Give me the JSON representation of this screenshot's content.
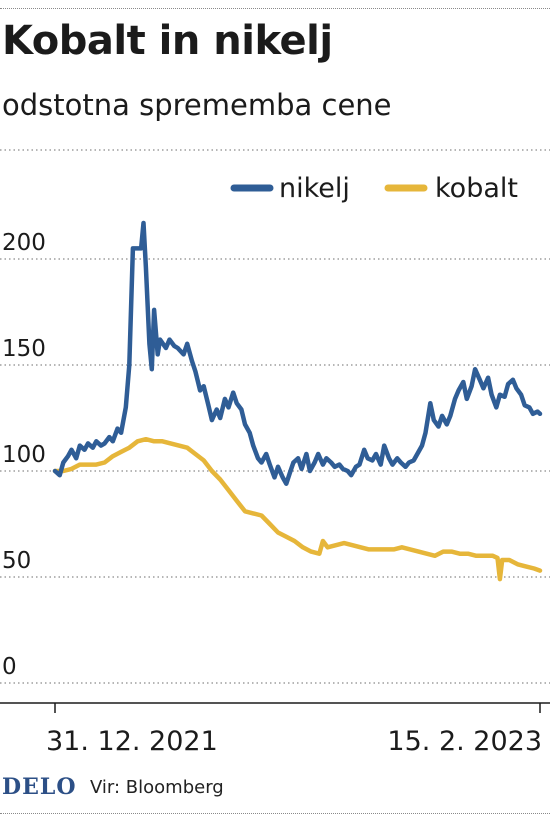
{
  "title": "Kobalt in nikelj",
  "subtitle": "odstotna sprememba cene",
  "footer": {
    "logo": "DELO",
    "source": "Vir: Bloomberg"
  },
  "chart_data": {
    "type": "line",
    "title": "Kobalt in nikelj",
    "subtitle": "odstotna sprememba cene",
    "x_tick_labels": [
      "31. 12. 2021",
      "15. 2. 2023"
    ],
    "x_range": [
      "2021-12-31",
      "2023-02-15"
    ],
    "y_ticks": [
      0,
      50,
      100,
      150,
      200
    ],
    "ylim": [
      0,
      220
    ],
    "grid": "horizontal-dotted",
    "legend": "top-right",
    "series": [
      {
        "name": "nikelj",
        "color": "#2f5d96",
        "points": [
          [
            "2021-12-31",
            100
          ],
          [
            "2022-01-04",
            98
          ],
          [
            "2022-01-07",
            104
          ],
          [
            "2022-01-11",
            107
          ],
          [
            "2022-01-14",
            110
          ],
          [
            "2022-01-18",
            106
          ],
          [
            "2022-01-21",
            112
          ],
          [
            "2022-01-25",
            110
          ],
          [
            "2022-01-28",
            113
          ],
          [
            "2022-02-01",
            111
          ],
          [
            "2022-02-04",
            114
          ],
          [
            "2022-02-08",
            112
          ],
          [
            "2022-02-11",
            113
          ],
          [
            "2022-02-15",
            116
          ],
          [
            "2022-02-18",
            114
          ],
          [
            "2022-02-22",
            120
          ],
          [
            "2022-02-25",
            118
          ],
          [
            "2022-03-01",
            130
          ],
          [
            "2022-03-04",
            150
          ],
          [
            "2022-03-07",
            205
          ],
          [
            "2022-03-10",
            205
          ],
          [
            "2022-03-14",
            205
          ],
          [
            "2022-03-16",
            217
          ],
          [
            "2022-03-18",
            196
          ],
          [
            "2022-03-21",
            160
          ],
          [
            "2022-03-23",
            148
          ],
          [
            "2022-03-25",
            176
          ],
          [
            "2022-03-28",
            155
          ],
          [
            "2022-03-30",
            162
          ],
          [
            "2022-04-04",
            158
          ],
          [
            "2022-04-07",
            162
          ],
          [
            "2022-04-11",
            159
          ],
          [
            "2022-04-14",
            158
          ],
          [
            "2022-04-19",
            155
          ],
          [
            "2022-04-22",
            160
          ],
          [
            "2022-04-26",
            152
          ],
          [
            "2022-04-29",
            147
          ],
          [
            "2022-05-03",
            138
          ],
          [
            "2022-05-06",
            140
          ],
          [
            "2022-05-10",
            131
          ],
          [
            "2022-05-13",
            124
          ],
          [
            "2022-05-17",
            129
          ],
          [
            "2022-05-20",
            125
          ],
          [
            "2022-05-24",
            134
          ],
          [
            "2022-05-27",
            130
          ],
          [
            "2022-05-31",
            137
          ],
          [
            "2022-06-03",
            132
          ],
          [
            "2022-06-07",
            129
          ],
          [
            "2022-06-10",
            122
          ],
          [
            "2022-06-14",
            118
          ],
          [
            "2022-06-17",
            112
          ],
          [
            "2022-06-21",
            106
          ],
          [
            "2022-06-24",
            104
          ],
          [
            "2022-06-28",
            108
          ],
          [
            "2022-07-01",
            103
          ],
          [
            "2022-07-05",
            97
          ],
          [
            "2022-07-08",
            102
          ],
          [
            "2022-07-12",
            97
          ],
          [
            "2022-07-15",
            94
          ],
          [
            "2022-07-18",
            99
          ],
          [
            "2022-07-21",
            104
          ],
          [
            "2022-07-25",
            106
          ],
          [
            "2022-07-28",
            101
          ],
          [
            "2022-08-01",
            108
          ],
          [
            "2022-08-04",
            100
          ],
          [
            "2022-08-08",
            104
          ],
          [
            "2022-08-11",
            108
          ],
          [
            "2022-08-15",
            103
          ],
          [
            "2022-08-18",
            106
          ],
          [
            "2022-08-22",
            104
          ],
          [
            "2022-08-25",
            102
          ],
          [
            "2022-08-29",
            103
          ],
          [
            "2022-09-01",
            101
          ],
          [
            "2022-09-05",
            100
          ],
          [
            "2022-09-08",
            98
          ],
          [
            "2022-09-12",
            102
          ],
          [
            "2022-09-15",
            103
          ],
          [
            "2022-09-19",
            110
          ],
          [
            "2022-09-22",
            106
          ],
          [
            "2022-09-26",
            105
          ],
          [
            "2022-09-29",
            108
          ],
          [
            "2022-10-03",
            103
          ],
          [
            "2022-10-06",
            112
          ],
          [
            "2022-10-10",
            106
          ],
          [
            "2022-10-13",
            103
          ],
          [
            "2022-10-17",
            106
          ],
          [
            "2022-10-20",
            104
          ],
          [
            "2022-10-24",
            102
          ],
          [
            "2022-10-27",
            104
          ],
          [
            "2022-10-31",
            105
          ],
          [
            "2022-11-03",
            108
          ],
          [
            "2022-11-07",
            112
          ],
          [
            "2022-11-10",
            118
          ],
          [
            "2022-11-14",
            132
          ],
          [
            "2022-11-17",
            124
          ],
          [
            "2022-11-21",
            121
          ],
          [
            "2022-11-24",
            126
          ],
          [
            "2022-11-28",
            122
          ],
          [
            "2022-12-01",
            126
          ],
          [
            "2022-12-05",
            134
          ],
          [
            "2022-12-08",
            138
          ],
          [
            "2022-12-12",
            142
          ],
          [
            "2022-12-15",
            134
          ],
          [
            "2022-12-19",
            140
          ],
          [
            "2022-12-22",
            148
          ],
          [
            "2022-12-26",
            143
          ],
          [
            "2022-12-29",
            139
          ],
          [
            "2023-01-02",
            144
          ],
          [
            "2023-01-05",
            136
          ],
          [
            "2023-01-09",
            130
          ],
          [
            "2023-01-12",
            136
          ],
          [
            "2023-01-16",
            135
          ],
          [
            "2023-01-19",
            141
          ],
          [
            "2023-01-23",
            143
          ],
          [
            "2023-01-26",
            139
          ],
          [
            "2023-01-30",
            136
          ],
          [
            "2023-02-02",
            131
          ],
          [
            "2023-02-06",
            130
          ],
          [
            "2023-02-09",
            127
          ],
          [
            "2023-02-13",
            128
          ],
          [
            "2023-02-15",
            127
          ]
        ]
      },
      {
        "name": "kobalt",
        "color": "#e6b63a",
        "points": [
          [
            "2021-12-31",
            100
          ],
          [
            "2022-01-07",
            100
          ],
          [
            "2022-01-14",
            101
          ],
          [
            "2022-01-21",
            103
          ],
          [
            "2022-01-28",
            103
          ],
          [
            "2022-02-04",
            103
          ],
          [
            "2022-02-11",
            104
          ],
          [
            "2022-02-18",
            107
          ],
          [
            "2022-02-25",
            109
          ],
          [
            "2022-03-04",
            111
          ],
          [
            "2022-03-11",
            114
          ],
          [
            "2022-03-18",
            115
          ],
          [
            "2022-03-25",
            114
          ],
          [
            "2022-04-01",
            114
          ],
          [
            "2022-04-08",
            113
          ],
          [
            "2022-04-15",
            112
          ],
          [
            "2022-04-22",
            111
          ],
          [
            "2022-04-29",
            108
          ],
          [
            "2022-05-06",
            105
          ],
          [
            "2022-05-13",
            100
          ],
          [
            "2022-05-20",
            96
          ],
          [
            "2022-05-27",
            91
          ],
          [
            "2022-06-03",
            86
          ],
          [
            "2022-06-10",
            81
          ],
          [
            "2022-06-17",
            80
          ],
          [
            "2022-06-24",
            79
          ],
          [
            "2022-07-01",
            75
          ],
          [
            "2022-07-08",
            71
          ],
          [
            "2022-07-15",
            69
          ],
          [
            "2022-07-22",
            67
          ],
          [
            "2022-07-29",
            64
          ],
          [
            "2022-08-05",
            62
          ],
          [
            "2022-08-12",
            61
          ],
          [
            "2022-08-15",
            67
          ],
          [
            "2022-08-19",
            64
          ],
          [
            "2022-08-26",
            65
          ],
          [
            "2022-09-02",
            66
          ],
          [
            "2022-09-09",
            65
          ],
          [
            "2022-09-16",
            64
          ],
          [
            "2022-09-23",
            63
          ],
          [
            "2022-09-30",
            63
          ],
          [
            "2022-10-07",
            63
          ],
          [
            "2022-10-14",
            63
          ],
          [
            "2022-10-21",
            64
          ],
          [
            "2022-10-28",
            63
          ],
          [
            "2022-11-04",
            62
          ],
          [
            "2022-11-11",
            61
          ],
          [
            "2022-11-18",
            60
          ],
          [
            "2022-11-25",
            62
          ],
          [
            "2022-12-02",
            62
          ],
          [
            "2022-12-09",
            61
          ],
          [
            "2022-12-16",
            61
          ],
          [
            "2022-12-23",
            60
          ],
          [
            "2022-12-30",
            60
          ],
          [
            "2023-01-06",
            60
          ],
          [
            "2023-01-10",
            59
          ],
          [
            "2023-01-12",
            49
          ],
          [
            "2023-01-14",
            58
          ],
          [
            "2023-01-20",
            58
          ],
          [
            "2023-01-27",
            56
          ],
          [
            "2023-02-03",
            55
          ],
          [
            "2023-02-10",
            54
          ],
          [
            "2023-02-15",
            53
          ]
        ]
      }
    ]
  }
}
